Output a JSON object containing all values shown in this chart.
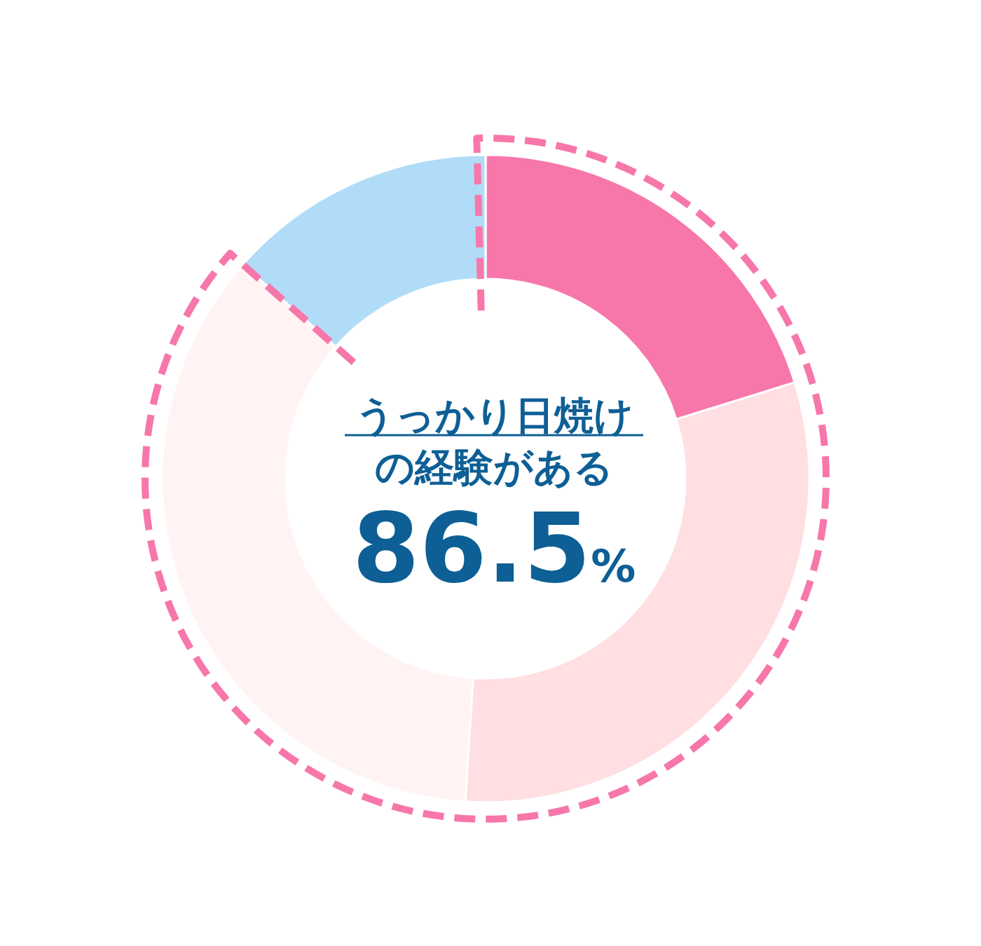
{
  "chart_data": {
    "type": "donut",
    "title": "うっかり日焼けの経験がある",
    "categories": [
      null,
      null,
      null,
      null
    ],
    "values": [
      20.2,
      30.8,
      35.5,
      13.5
    ],
    "colors": [
      "#f777aa",
      "#ffdfe2",
      "#fff4f3",
      "#b0dcf8"
    ],
    "annotations": [
      "86.5%"
    ]
  }
}
